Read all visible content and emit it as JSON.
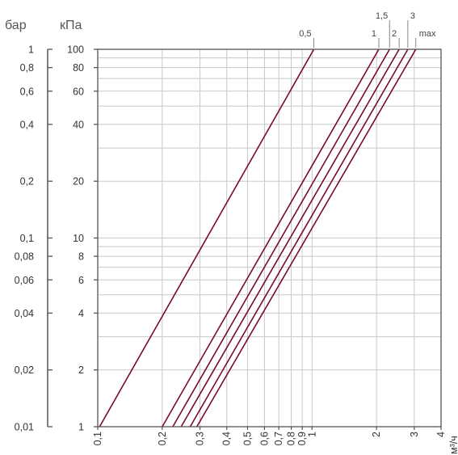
{
  "chart_data": {
    "type": "line",
    "x_scale": "log",
    "y_scale": "log",
    "x_range": [
      0.1,
      4
    ],
    "y_range_kpa": [
      1,
      100
    ],
    "y_range_bar": [
      0.01,
      1
    ],
    "axis_titles": {
      "bar": "бар",
      "kpa": "кПа",
      "x": "м³/ч"
    },
    "bar_ticks": [
      {
        "value": 1,
        "label": "1"
      },
      {
        "value": 0.8,
        "label": "0,8"
      },
      {
        "value": 0.6,
        "label": "0,6"
      },
      {
        "value": 0.4,
        "label": "0,4"
      },
      {
        "value": 0.2,
        "label": "0,2"
      },
      {
        "value": 0.1,
        "label": "0,1"
      },
      {
        "value": 0.08,
        "label": "0,08"
      },
      {
        "value": 0.06,
        "label": "0,06"
      },
      {
        "value": 0.04,
        "label": "0,04"
      },
      {
        "value": 0.02,
        "label": "0,02"
      },
      {
        "value": 0.01,
        "label": "0,01"
      }
    ],
    "kpa_ticks": [
      {
        "value": 100,
        "label": "100"
      },
      {
        "value": 80,
        "label": "80"
      },
      {
        "value": 60,
        "label": "60"
      },
      {
        "value": 40,
        "label": "40"
      },
      {
        "value": 20,
        "label": "20"
      },
      {
        "value": 10,
        "label": "10"
      },
      {
        "value": 8,
        "label": "8"
      },
      {
        "value": 6,
        "label": "6"
      },
      {
        "value": 4,
        "label": "4"
      },
      {
        "value": 2,
        "label": "2"
      },
      {
        "value": 1,
        "label": "1"
      }
    ],
    "x_ticks": [
      {
        "value": 0.1,
        "label": "0,1"
      },
      {
        "value": 0.2,
        "label": "0,2"
      },
      {
        "value": 0.3,
        "label": "0,3"
      },
      {
        "value": 0.4,
        "label": "0,4"
      },
      {
        "value": 0.5,
        "label": "0,5"
      },
      {
        "value": 0.6,
        "label": "0,6"
      },
      {
        "value": 0.7,
        "label": "0,7"
      },
      {
        "value": 0.8,
        "label": "0,8"
      },
      {
        "value": 0.9,
        "label": "0,9"
      },
      {
        "value": 1,
        "label": "1"
      },
      {
        "value": 2,
        "label": "2"
      },
      {
        "value": 3,
        "label": "3"
      },
      {
        "value": 4,
        "label": "4"
      }
    ],
    "series": [
      {
        "name": "0,5",
        "points": [
          [
            0.102,
            1
          ],
          [
            1.02,
            100
          ]
        ]
      },
      {
        "name": "1",
        "points": [
          [
            0.2,
            1
          ],
          [
            2.05,
            100
          ]
        ]
      },
      {
        "name": "1,5",
        "points": [
          [
            0.224,
            1
          ],
          [
            2.3,
            100
          ]
        ]
      },
      {
        "name": "2",
        "points": [
          [
            0.245,
            1
          ],
          [
            2.55,
            100
          ]
        ]
      },
      {
        "name": "3",
        "points": [
          [
            0.27,
            1
          ],
          [
            2.8,
            100
          ]
        ]
      },
      {
        "name": "max",
        "points": [
          [
            0.29,
            1
          ],
          [
            3.05,
            100
          ]
        ]
      }
    ],
    "line_color": "#7a0a2a",
    "grid": true,
    "grid_color": "#c8c8c8"
  }
}
